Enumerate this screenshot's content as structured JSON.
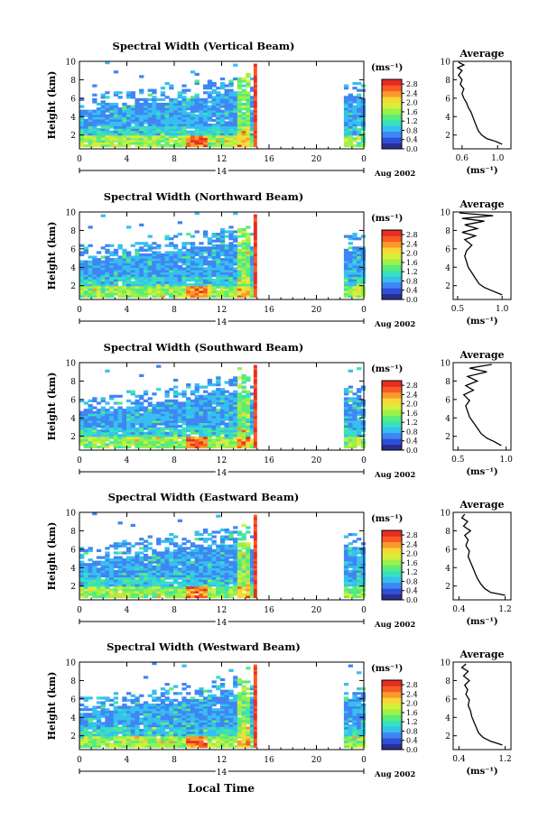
{
  "figure": {
    "xlabel": "Local Time",
    "date_day": "14",
    "date_label": "Aug 2002",
    "ylabel": "Height (km)",
    "unit_label": "(ms⁻¹)",
    "avg_title": "Average",
    "avg_xlabel": "(ms⁻¹)"
  },
  "colorbar": {
    "ticks": [
      "2.8",
      "2.4",
      "2.0",
      "1.6",
      "1.2",
      "0.8",
      "0.4",
      "0.0"
    ],
    "colors": [
      "#2a2f8f",
      "#2f4fd8",
      "#3f86f2",
      "#37bff0",
      "#36e0c0",
      "#58ec7a",
      "#9cf04a",
      "#d6f03a",
      "#f6d836",
      "#fb9a2c",
      "#f85a25",
      "#e62d22"
    ]
  },
  "chart_data": [
    {
      "type": "heatmap",
      "title": "Spectral Width (Vertical Beam)",
      "x_ticks": [
        "0",
        "4",
        "8",
        "12",
        "16",
        "20",
        "0"
      ],
      "y_ticks": [
        "2",
        "4",
        "6",
        "8",
        "10"
      ],
      "xlim": [
        0,
        24
      ],
      "ylim": [
        0.5,
        10
      ],
      "data_gap": [
        15,
        22
      ],
      "average_profile": {
        "x_ticks": [
          "0.6",
          "1.0"
        ],
        "xlim": [
          0.5,
          1.15
        ],
        "height": [
          1.0,
          1.3,
          1.6,
          2.0,
          2.5,
          3.0,
          3.5,
          4.0,
          4.5,
          5.0,
          5.5,
          6.0,
          6.5,
          7.0,
          7.5,
          8.0,
          8.5,
          9.0,
          9.3,
          9.6,
          9.9
        ],
        "width": [
          1.05,
          0.98,
          0.88,
          0.82,
          0.78,
          0.76,
          0.74,
          0.72,
          0.7,
          0.67,
          0.65,
          0.62,
          0.6,
          0.62,
          0.58,
          0.6,
          0.56,
          0.6,
          0.55,
          0.62,
          0.56
        ]
      }
    },
    {
      "type": "heatmap",
      "title": "Spectral Width (Northward Beam)",
      "x_ticks": [
        "0",
        "4",
        "8",
        "12",
        "16",
        "20",
        "0"
      ],
      "y_ticks": [
        "2",
        "4",
        "6",
        "8",
        "10"
      ],
      "xlim": [
        0,
        24
      ],
      "ylim": [
        0.5,
        10
      ],
      "data_gap": [
        15,
        22
      ],
      "average_profile": {
        "x_ticks": [
          "0.5",
          "1.0"
        ],
        "xlim": [
          0.45,
          1.1
        ],
        "height": [
          1.0,
          1.4,
          1.8,
          2.2,
          2.8,
          3.4,
          4.0,
          4.6,
          5.2,
          5.8,
          6.4,
          7.0,
          7.4,
          7.8,
          8.2,
          8.6,
          9.0,
          9.3,
          9.6,
          9.9
        ],
        "width": [
          1.0,
          0.9,
          0.8,
          0.74,
          0.7,
          0.66,
          0.62,
          0.6,
          0.58,
          0.6,
          0.66,
          0.58,
          0.7,
          0.55,
          0.72,
          0.58,
          0.8,
          0.55,
          0.9,
          0.52
        ]
      }
    },
    {
      "type": "heatmap",
      "title": "Spectral Width (Southward Beam)",
      "x_ticks": [
        "0",
        "4",
        "8",
        "12",
        "16",
        "20",
        "0"
      ],
      "y_ticks": [
        "2",
        "4",
        "6",
        "8",
        "10"
      ],
      "xlim": [
        0,
        24
      ],
      "ylim": [
        0.5,
        10
      ],
      "data_gap": [
        15,
        22
      ],
      "average_profile": {
        "x_ticks": [
          "0.5",
          "1.0"
        ],
        "xlim": [
          0.45,
          1.05
        ],
        "height": [
          1.0,
          1.4,
          1.8,
          2.3,
          2.9,
          3.5,
          4.1,
          4.7,
          5.3,
          5.9,
          6.5,
          7.0,
          7.5,
          8.0,
          8.5,
          9.0,
          9.4,
          9.8
        ],
        "width": [
          0.95,
          0.88,
          0.8,
          0.74,
          0.7,
          0.66,
          0.62,
          0.6,
          0.58,
          0.62,
          0.56,
          0.66,
          0.58,
          0.7,
          0.6,
          0.8,
          0.62,
          0.85
        ]
      }
    },
    {
      "type": "heatmap",
      "title": "Spectral Width (Eastward Beam)",
      "x_ticks": [
        "0",
        "4",
        "8",
        "12",
        "16",
        "20",
        "0"
      ],
      "y_ticks": [
        "2",
        "4",
        "6",
        "8",
        "10"
      ],
      "xlim": [
        0,
        24
      ],
      "ylim": [
        0.5,
        10
      ],
      "data_gap": [
        15,
        22
      ],
      "average_profile": {
        "x_ticks": [
          "0.4",
          "1.2"
        ],
        "xlim": [
          0.3,
          1.3
        ],
        "height": [
          1.0,
          1.3,
          1.7,
          2.2,
          2.8,
          3.4,
          4.0,
          4.6,
          5.2,
          5.8,
          6.4,
          7.0,
          7.5,
          8.0,
          8.5,
          9.0,
          9.4,
          9.8
        ],
        "width": [
          1.2,
          0.95,
          0.85,
          0.78,
          0.72,
          0.68,
          0.64,
          0.6,
          0.56,
          0.58,
          0.52,
          0.56,
          0.5,
          0.6,
          0.48,
          0.55,
          0.45,
          0.5
        ]
      }
    },
    {
      "type": "heatmap",
      "title": "Spectral Width (Westward Beam)",
      "x_ticks": [
        "0",
        "4",
        "8",
        "12",
        "16",
        "20",
        "0"
      ],
      "y_ticks": [
        "2",
        "4",
        "6",
        "8",
        "10"
      ],
      "xlim": [
        0,
        24
      ],
      "ylim": [
        0.5,
        10
      ],
      "data_gap": [
        15,
        22
      ],
      "average_profile": {
        "x_ticks": [
          "0.4",
          "1.2"
        ],
        "xlim": [
          0.3,
          1.3
        ],
        "height": [
          1.0,
          1.4,
          1.8,
          2.3,
          2.9,
          3.5,
          4.1,
          4.7,
          5.3,
          5.9,
          6.5,
          7.0,
          7.5,
          8.0,
          8.5,
          9.0,
          9.4,
          9.8
        ],
        "width": [
          1.15,
          0.95,
          0.82,
          0.74,
          0.7,
          0.66,
          0.62,
          0.6,
          0.56,
          0.58,
          0.52,
          0.55,
          0.5,
          0.58,
          0.48,
          0.56,
          0.45,
          0.52
        ]
      }
    }
  ]
}
